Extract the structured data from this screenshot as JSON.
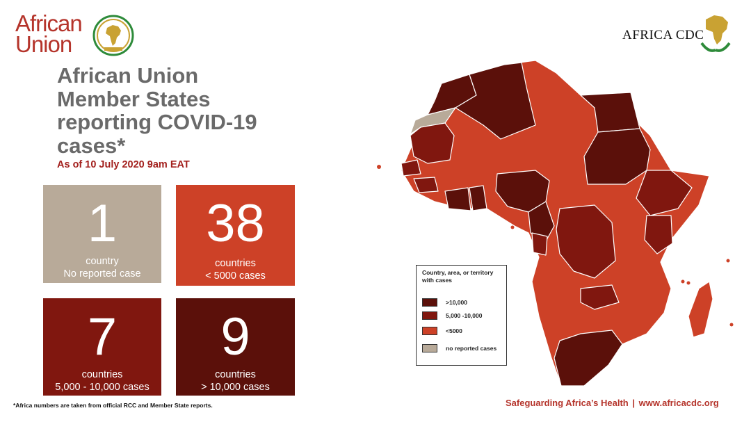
{
  "logos": {
    "au_line1": "African",
    "au_line2": "Union",
    "cdc_text": "AFRICA CDC"
  },
  "header": {
    "title": "African Union Member States reporting COVID-19 cases*",
    "subtitle": "As of 10 July 2020 9am EAT"
  },
  "stats": {
    "no_case": {
      "number": "1",
      "line1": "country",
      "line2": "No reported case"
    },
    "lt_5000": {
      "number": "38",
      "line1": "countries",
      "line2": "< 5000 cases"
    },
    "mid": {
      "number": "7",
      "line1": "countries",
      "line2": "5,000 - 10,000 cases"
    },
    "gt_10000": {
      "number": "9",
      "line1": "countries",
      "line2": "> 10,000 cases"
    }
  },
  "legend": {
    "title": "Country, area, or territory with cases",
    "items": [
      {
        "label": ">10,000",
        "color": "#5b100a"
      },
      {
        "label": "5,000 -10,000",
        "color": "#80170f"
      },
      {
        "label": "<5000",
        "color": "#cd4127"
      },
      {
        "label": "no reported cases",
        "color": "#b8aa99"
      }
    ]
  },
  "colors": {
    "gt_10000": "#5b100a",
    "mid": "#80170f",
    "lt_5000": "#cd4127",
    "none": "#b8aa99",
    "title_gray": "#6a6a6a",
    "brand_red": "#b5342b"
  },
  "footer": {
    "note": "*Africa numbers are taken from official RCC and Member State reports.",
    "tagline_left": "Safeguarding Africa’s Health",
    "tagline_sep": "|",
    "tagline_right": "www.africacdc.org"
  }
}
